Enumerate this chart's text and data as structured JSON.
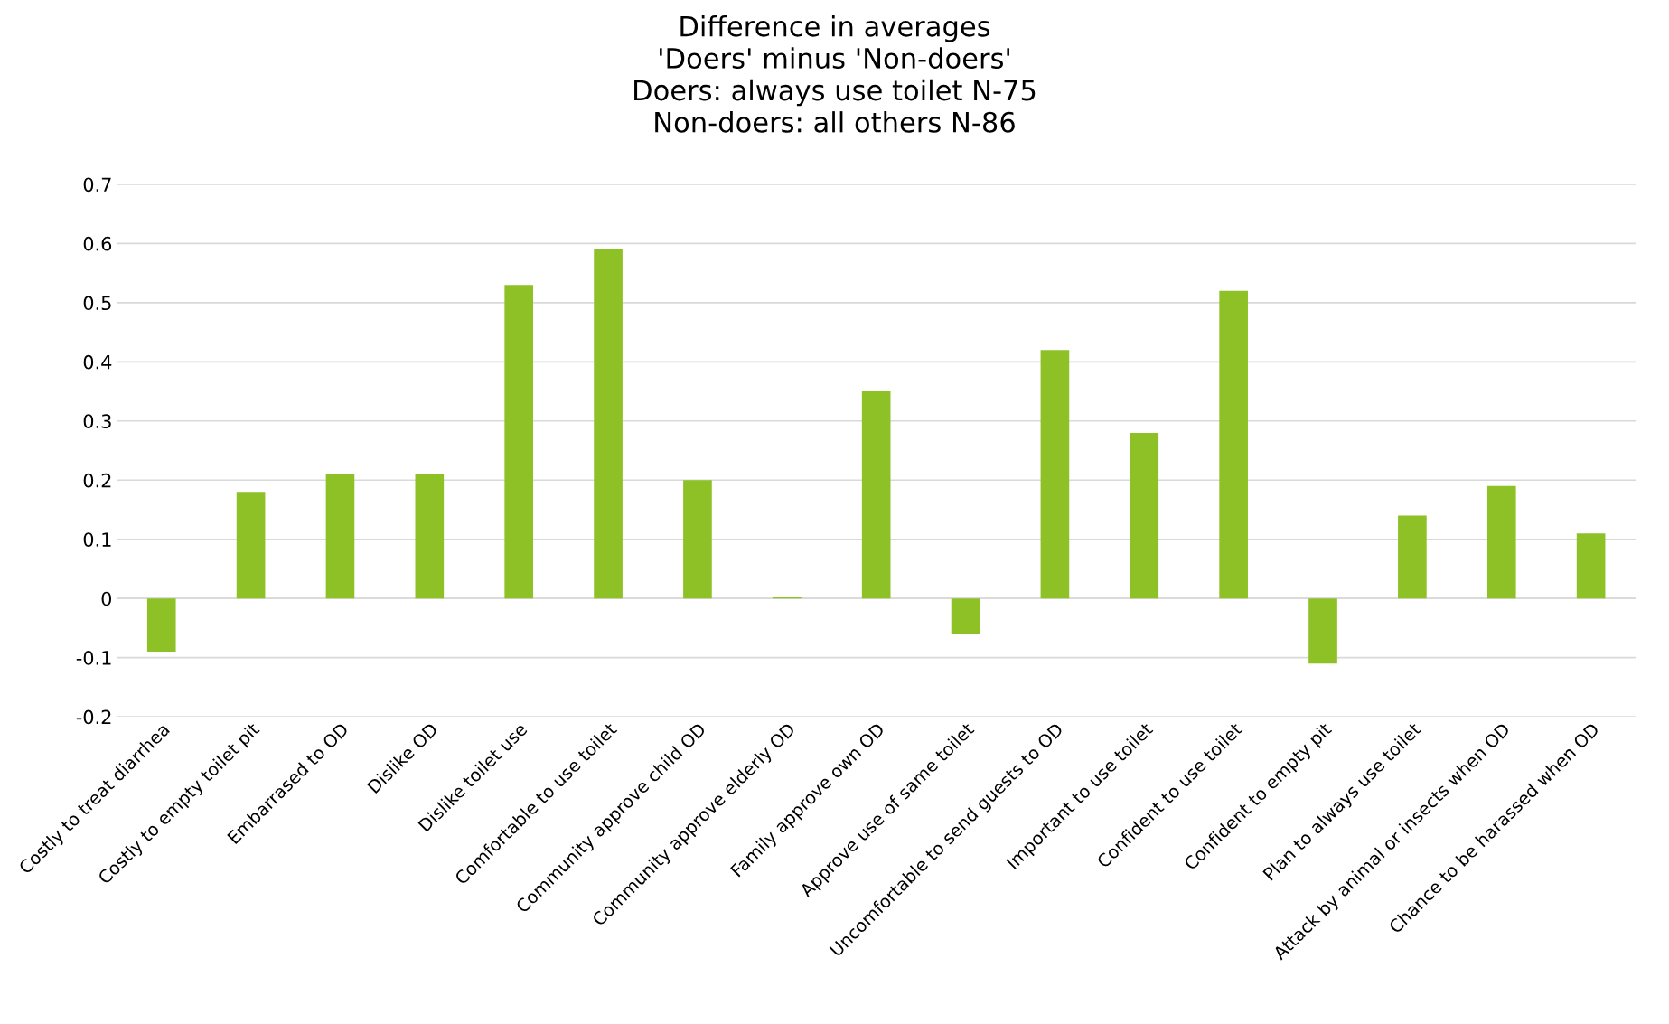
{
  "chart_data": {
    "type": "bar",
    "title": "Difference in averages\n'Doers' minus 'Non-doers'\nDoers: always use toilet N-75\nNon-doers: all others N-86",
    "categories": [
      "Costly to treat diarrhea",
      "Costly to empty toilet pit",
      "Embarrased to OD",
      "Dislike OD",
      "Dislike toilet use",
      "Comfortable to use toilet",
      "Community approve child OD",
      "Community approve elderly OD",
      "Family approve own OD",
      "Approve use of same toilet",
      "Uncomfortable to send guests to OD",
      "Important to use toilet",
      "Confident to use toilet",
      "Confident to empty pit",
      "Plan to always use toilet",
      "Attack by animal or insects when OD",
      "Chance to be harassed when OD"
    ],
    "values": [
      -0.09,
      0.18,
      0.21,
      0.21,
      0.53,
      0.59,
      0.2,
      0.003,
      0.35,
      -0.06,
      0.42,
      0.28,
      0.52,
      -0.11,
      0.14,
      0.19,
      0.11
    ],
    "color": "#8dc126",
    "ylim": [
      -0.2,
      0.7
    ],
    "yticks": [
      -0.2,
      -0.1,
      0,
      0.1,
      0.2,
      0.3,
      0.4,
      0.5,
      0.6,
      0.7
    ],
    "grid": "y",
    "legend": false
  }
}
